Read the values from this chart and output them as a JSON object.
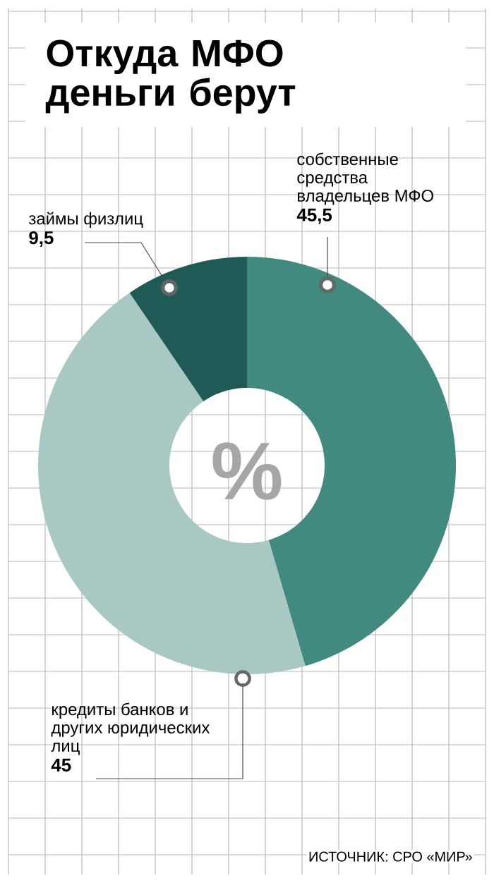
{
  "chart_data": {
    "type": "donut",
    "title": "Откуда МФО деньги берут",
    "categories": [
      "собственные средства владельцев МФО",
      "кредиты банков и других юридических лиц",
      "займы физлиц"
    ],
    "values": [
      45.5,
      45,
      9.5
    ],
    "colors": [
      "#42897f",
      "#a9c8c4",
      "#1f5a56"
    ],
    "value_labels": [
      "45,5",
      "45",
      "9,5"
    ],
    "annotations": [
      "%",
      "ИСТОЧНИК: СРО «МИР»"
    ]
  }
}
